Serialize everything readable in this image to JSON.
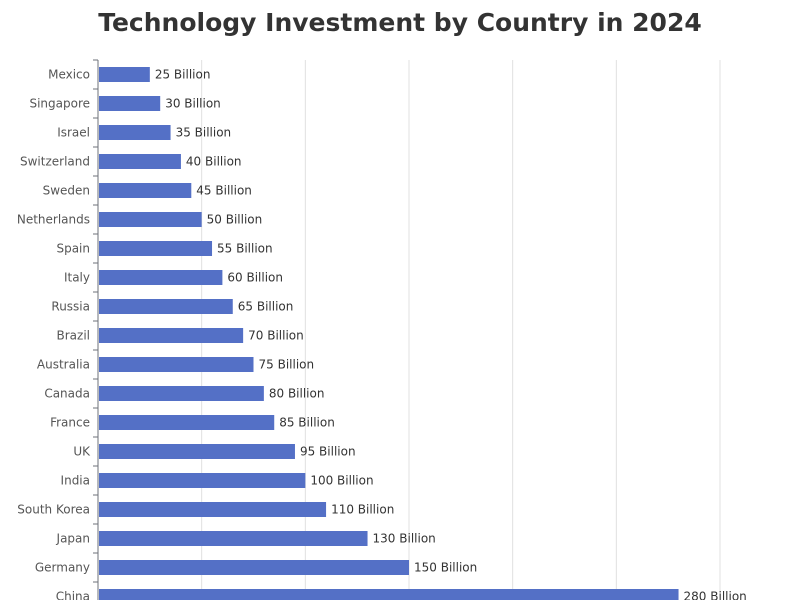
{
  "chart_data": {
    "type": "bar",
    "orientation": "horizontal",
    "title": "Technology Investment by Country in 2024",
    "xlabel": "",
    "ylabel": "",
    "categories": [
      "Mexico",
      "Singapore",
      "Israel",
      "Switzerland",
      "Sweden",
      "Netherlands",
      "Spain",
      "Italy",
      "Russia",
      "Brazil",
      "Australia",
      "Canada",
      "France",
      "UK",
      "India",
      "South Korea",
      "Japan",
      "Germany",
      "China"
    ],
    "values": [
      25,
      30,
      35,
      40,
      45,
      50,
      55,
      60,
      65,
      70,
      75,
      80,
      85,
      95,
      100,
      110,
      130,
      150,
      280
    ],
    "value_labels": [
      "25 Billion",
      "30 Billion",
      "35 Billion",
      "40 Billion",
      "45 Billion",
      "50 Billion",
      "55 Billion",
      "60 Billion",
      "65 Billion",
      "70 Billion",
      "75 Billion",
      "80 Billion",
      "85 Billion",
      "95 Billion",
      "100 Billion",
      "110 Billion",
      "130 Billion",
      "150 Billion",
      "280 Billion"
    ],
    "xlim": [
      0,
      300
    ],
    "grid": true,
    "bar_color": "#5470c6",
    "grid_color": "#e0e0e0",
    "axis_color": "#6e7079"
  }
}
